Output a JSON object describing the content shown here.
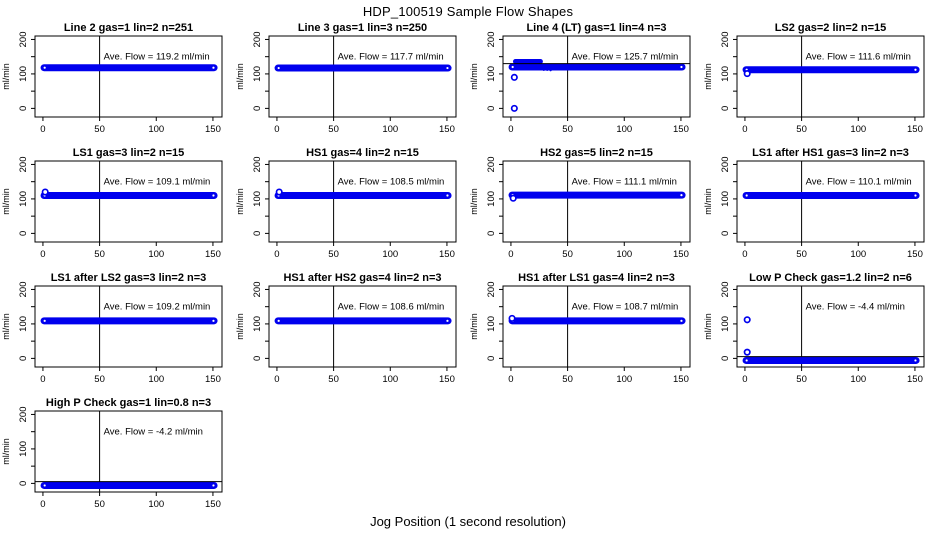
{
  "page": {
    "title": "HDP_100519  Sample Flow Shapes",
    "xlabel": "Jog Position (1 second resolution)"
  },
  "chart_data": {
    "type": "scatter",
    "layout": {
      "rows": 4,
      "cols": 4,
      "panel_count": 13
    },
    "colors": {
      "points": "#0000ee",
      "axis": "#000000",
      "background": "#ffffff"
    },
    "axes": {
      "xlim": [
        -7,
        158
      ],
      "ylim": [
        -25,
        210
      ],
      "x_ticks": [
        0,
        50,
        100,
        150
      ],
      "y_ticks": [
        0,
        50,
        100,
        150,
        200
      ],
      "y_labeled_ticks": [
        0,
        100,
        200
      ],
      "ylabel": "ml/min",
      "vline_x": 50,
      "grid": false
    },
    "ave_prefix": "Ave. Flow =",
    "ave_unit": "ml/min",
    "panels": [
      {
        "title": "Line 2 gas=1 lin=2 n=251",
        "ave_flow": "119.2",
        "band": {
          "x0": 1,
          "x1": 151,
          "y": 118
        },
        "outliers": []
      },
      {
        "title": "Line 3 gas=1 lin=3 n=250",
        "ave_flow": "117.7",
        "band": {
          "x0": 1,
          "x1": 151,
          "y": 117
        },
        "outliers": []
      },
      {
        "title": "Line 4 (LT) gas=1 lin=4 n=3",
        "ave_flow": "125.7",
        "band": {
          "x0": 1,
          "x1": 151,
          "y": 120
        },
        "hline": 130,
        "bumps": [
          {
            "x0": 4,
            "x1": 26,
            "y": 136
          }
        ],
        "dots": [
          [
            29,
            112
          ],
          [
            32,
            112
          ],
          [
            35,
            111
          ]
        ],
        "outliers": [
          [
            3,
            90
          ],
          [
            3,
            0
          ]
        ]
      },
      {
        "title": "LS2 gas=2 lin=2 n=15",
        "ave_flow": "111.6",
        "band": {
          "x0": 1,
          "x1": 151,
          "y": 112
        },
        "outliers": [
          [
            2,
            101
          ]
        ]
      },
      {
        "title": "LS1 gas=3 lin=2 n=15",
        "ave_flow": "109.1",
        "band": {
          "x0": 1,
          "x1": 151,
          "y": 110
        },
        "outliers": [
          [
            2,
            120
          ]
        ]
      },
      {
        "title": "HS1 gas=4 lin=2 n=15",
        "ave_flow": "108.5",
        "band": {
          "x0": 1,
          "x1": 151,
          "y": 110
        },
        "outliers": [
          [
            2,
            120
          ]
        ]
      },
      {
        "title": "HS2 gas=5 lin=2 n=15",
        "ave_flow": "111.1",
        "band": {
          "x0": 1,
          "x1": 151,
          "y": 111
        },
        "outliers": [
          [
            2,
            102
          ]
        ]
      },
      {
        "title": "LS1 after HS1 gas=3 lin=2 n=3",
        "ave_flow": "110.1",
        "band": {
          "x0": 1,
          "x1": 151,
          "y": 110
        },
        "outliers": []
      },
      {
        "title": "LS1 after LS2 gas=3 lin=2 n=3",
        "ave_flow": "109.2",
        "band": {
          "x0": 1,
          "x1": 151,
          "y": 109
        },
        "outliers": []
      },
      {
        "title": "HS1 after HS2 gas=4 lin=2 n=3",
        "ave_flow": "108.6",
        "band": {
          "x0": 1,
          "x1": 151,
          "y": 109
        },
        "outliers": []
      },
      {
        "title": "HS1 after LS1 gas=4 lin=2 n=3",
        "ave_flow": "108.7",
        "band": {
          "x0": 1,
          "x1": 151,
          "y": 109
        },
        "outliers": [
          [
            1,
            116
          ]
        ]
      },
      {
        "title": "Low P Check gas=1.2 lin=2 n=6",
        "ave_flow": "-4.4",
        "band": {
          "x0": 1,
          "x1": 151,
          "y": -6
        },
        "hline": 5,
        "outliers": [
          [
            2,
            112
          ],
          [
            2,
            18
          ]
        ]
      },
      {
        "title": "High P Check gas=1 lin=0.8 n=3",
        "ave_flow": "-4.2",
        "band": {
          "x0": 1,
          "x1": 151,
          "y": -6
        },
        "hline": 5,
        "outliers": []
      }
    ]
  }
}
